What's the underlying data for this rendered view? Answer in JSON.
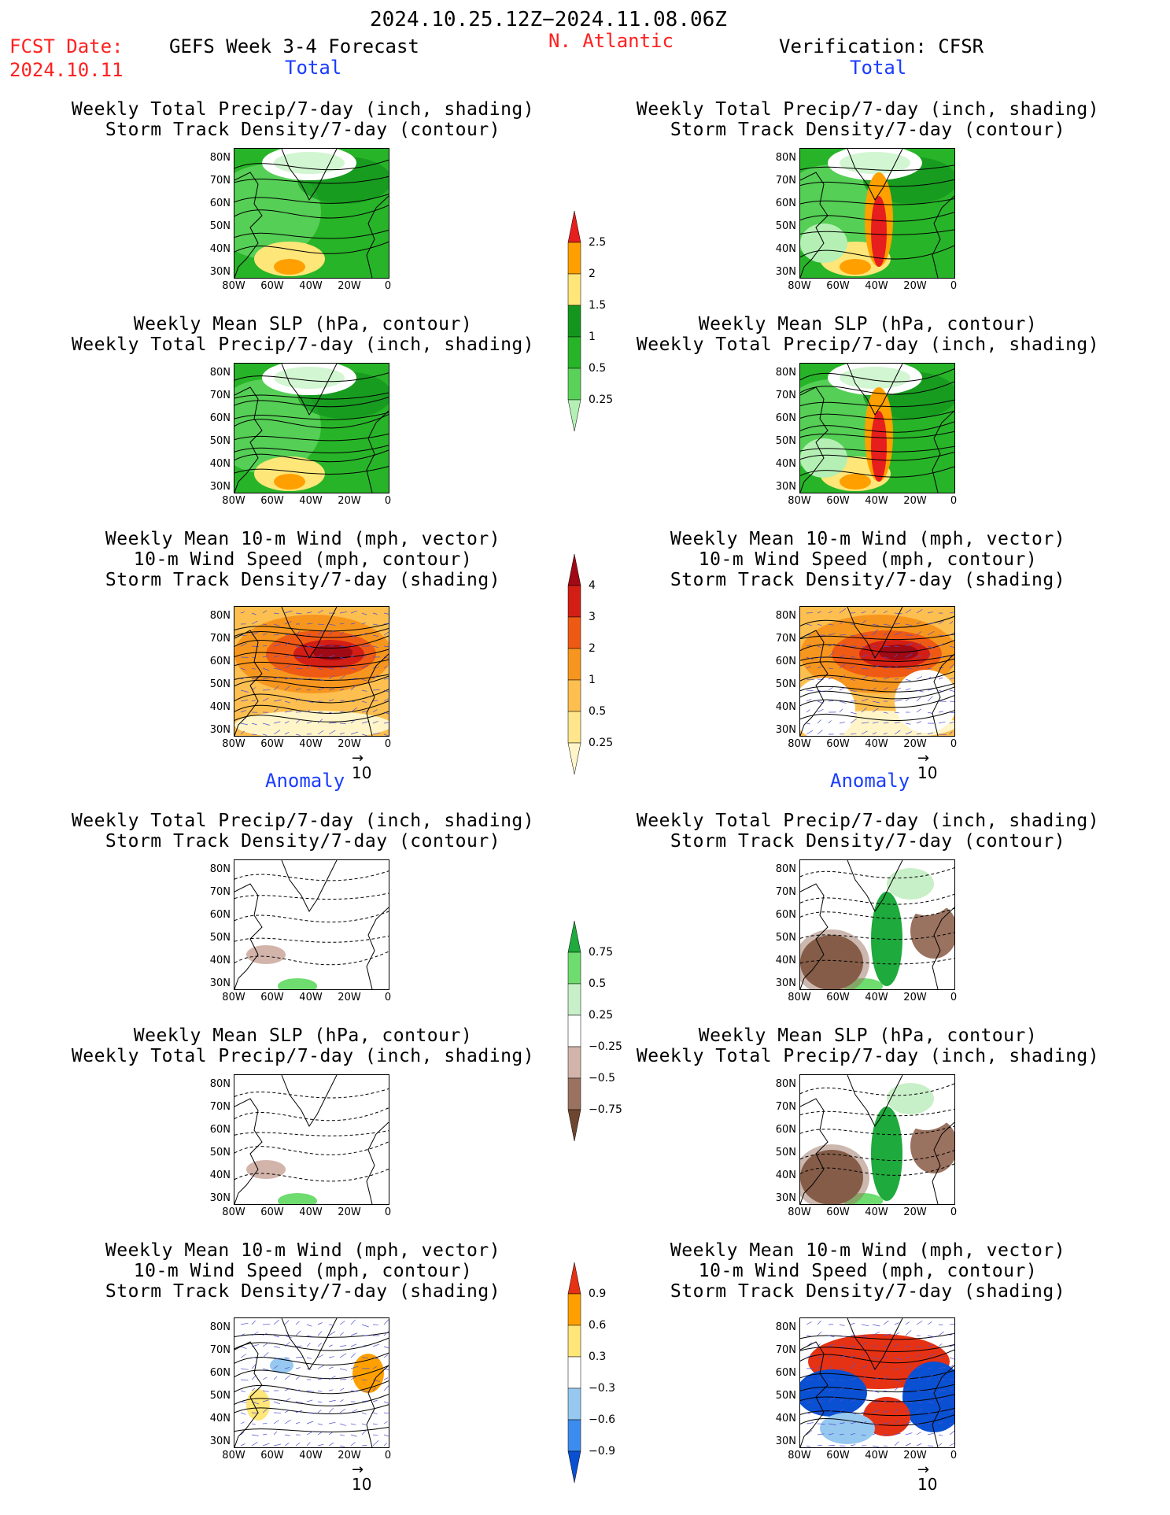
{
  "header": {
    "date_range": "2024.10.25.12Z−2024.11.08.06Z",
    "fcst_label": "FCST Date:",
    "fcst_date": "2024.10.11",
    "model": "GEFS Week 3-4 Forecast",
    "region": "N. Atlantic",
    "verification": "Verification: CFSR",
    "left_total": "Total",
    "right_total": "Total",
    "left_anomaly": "Anomaly",
    "right_anomaly": "Anomaly"
  },
  "titles": {
    "precip_storm": [
      "Weekly Total Precip/7-day (inch, shading)",
      "Storm Track Density/7-day (contour)"
    ],
    "slp_precip": [
      "Weekly Mean SLP (hPa, contour)",
      "Weekly Total Precip/7-day (inch, shading)"
    ],
    "wind": [
      "Weekly Mean 10-m Wind (mph, vector)",
      "10-m Wind Speed (mph, contour)",
      "Storm Track Density/7-day (shading)"
    ]
  },
  "axes": {
    "y": [
      "80N",
      "70N",
      "60N",
      "50N",
      "40N",
      "30N"
    ],
    "x": [
      "80W",
      "60W",
      "40W",
      "20W",
      "0"
    ],
    "vector_ref": "10"
  },
  "chart_data": [
    {
      "type": "heatmap",
      "name": "Total precip colorbar",
      "levels": [
        0.25,
        0.5,
        1,
        1.5,
        2,
        2.5
      ],
      "colors": [
        "#b4f0b4",
        "#5ad25a",
        "#28b428",
        "#14961e",
        "#ffe678",
        "#ffa000",
        "#e61e1e"
      ]
    },
    {
      "type": "heatmap",
      "name": "Storm track density colorbar",
      "levels": [
        0.25,
        0.5,
        1,
        2,
        3,
        4
      ],
      "colors": [
        "#fff5c8",
        "#ffe68c",
        "#fdbf50",
        "#f7961e",
        "#ee5a14",
        "#d21e14",
        "#a00a14"
      ]
    },
    {
      "type": "heatmap",
      "name": "Precip anomaly colorbar",
      "levels": [
        -0.75,
        -0.5,
        -0.25,
        0.25,
        0.5,
        0.75
      ],
      "colors": [
        "#6e4630",
        "#9a7260",
        "#d2b4aa",
        "#ffffff",
        "#c8f0c8",
        "#6edc6e",
        "#1eaa3c"
      ]
    },
    {
      "type": "heatmap",
      "name": "Storm density anomaly colorbar",
      "levels": [
        -0.9,
        -0.6,
        -0.3,
        0.3,
        0.6,
        0.9
      ],
      "colors": [
        "#0a50d2",
        "#3c8cf0",
        "#96c8f0",
        "#ffffff",
        "#ffe678",
        "#ffa000",
        "#e63214"
      ]
    }
  ]
}
